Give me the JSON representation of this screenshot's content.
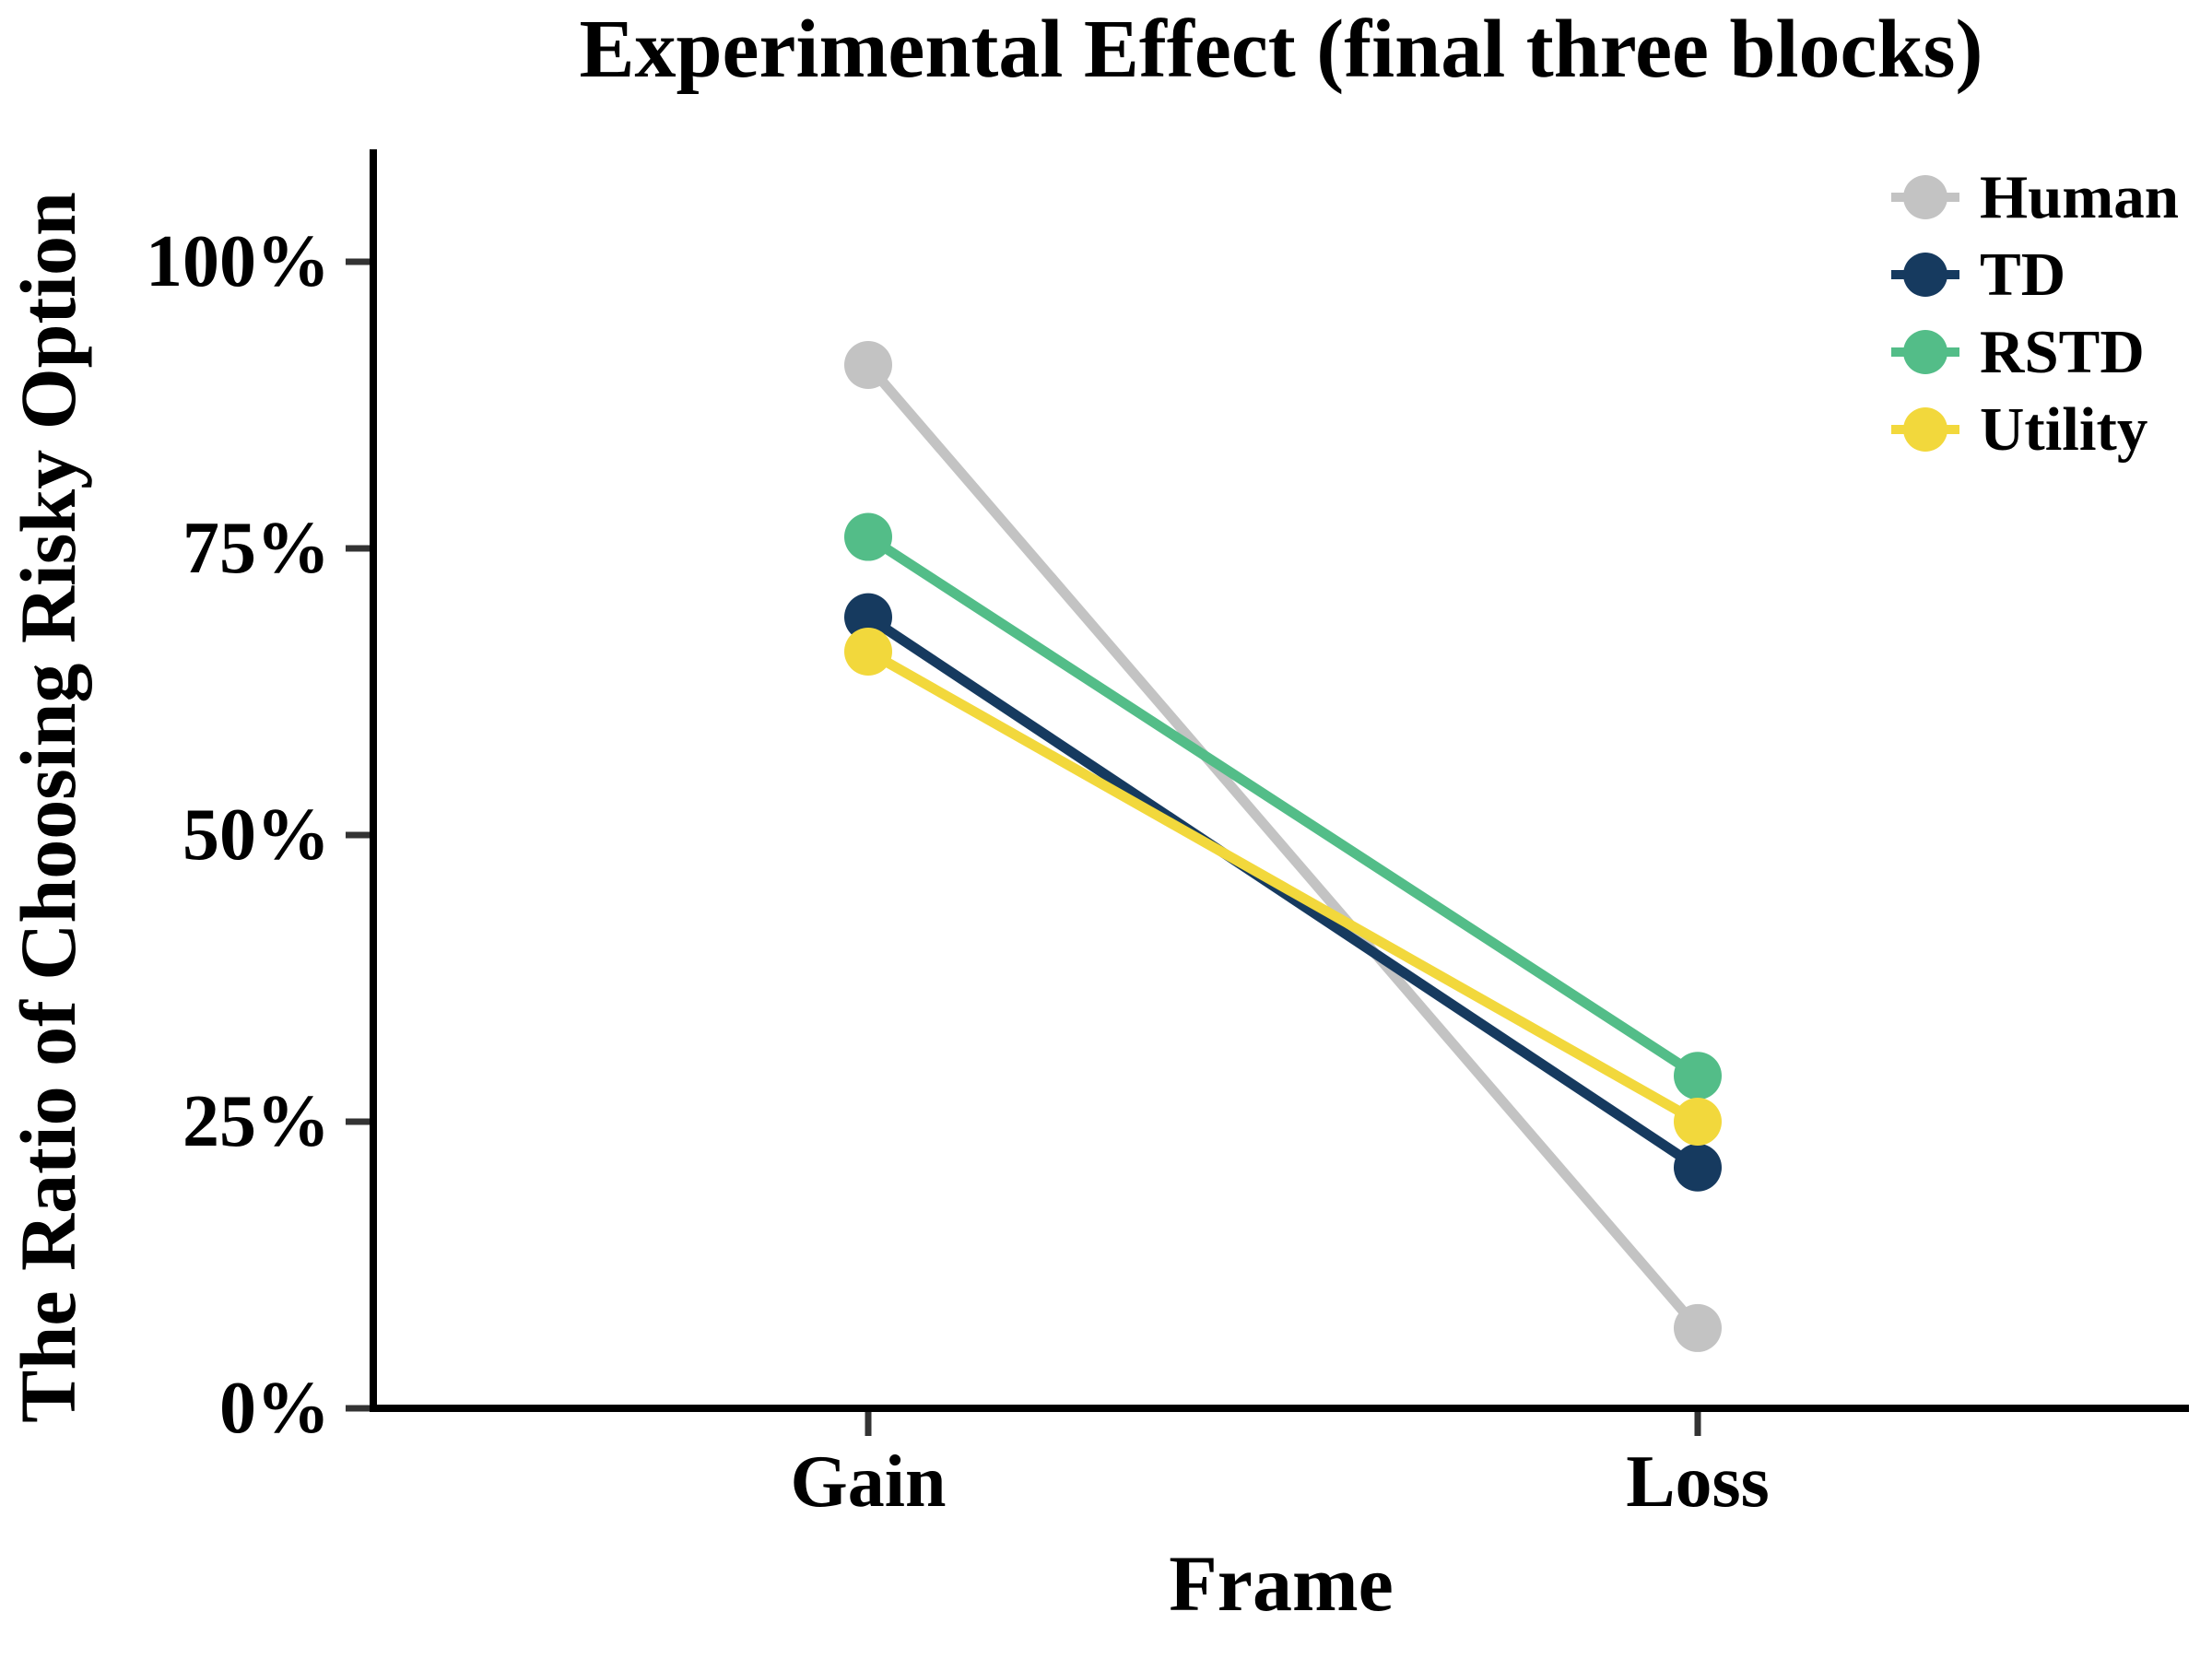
{
  "chart_data": {
    "type": "line",
    "title": "Experimental Effect (final three blocks)",
    "xlabel": "Frame",
    "ylabel": "The Ratio of Choosing Risky Option",
    "categories": [
      "Gain",
      "Loss"
    ],
    "y_tick_values": [
      0,
      25,
      50,
      75,
      100
    ],
    "y_tick_labels": [
      "0%",
      "25%",
      "50%",
      "75%",
      "100%"
    ],
    "ylim": [
      0,
      110
    ],
    "grid": false,
    "legend_position": "upper right",
    "unit": "percent",
    "axis_color": "#000000",
    "tick_color": "#333333",
    "series": [
      {
        "name": "Human",
        "color": "#C3C3C3",
        "values": [
          91,
          7
        ]
      },
      {
        "name": "TD",
        "color": "#163A5F",
        "values": [
          69,
          21
        ]
      },
      {
        "name": "RSTD",
        "color": "#53BD88",
        "values": [
          76,
          29
        ]
      },
      {
        "name": "Utility",
        "color": "#F2D83C",
        "values": [
          66,
          25
        ]
      }
    ]
  }
}
